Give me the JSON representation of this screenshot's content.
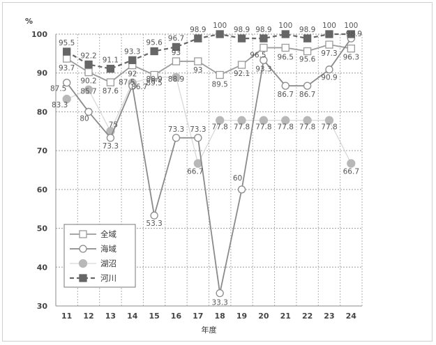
{
  "chart_data": {
    "type": "line",
    "ylabel": "%",
    "xlabel": "年度",
    "ylim": [
      30,
      100
    ],
    "yticks": [
      30,
      40,
      50,
      60,
      70,
      80,
      90,
      100
    ],
    "categories": [
      "11",
      "12",
      "13",
      "14",
      "15",
      "16",
      "17",
      "18",
      "19",
      "20",
      "21",
      "22",
      "23",
      "24"
    ],
    "grid": true,
    "legend_position": "bottom-left",
    "series": [
      {
        "name": "全域",
        "style": "solid-open-square",
        "color": "#9a9a9a",
        "values": [
          93.7,
          90.2,
          87.6,
          92,
          89.5,
          93,
          93,
          89.5,
          92.1,
          96.5,
          96.5,
          95.6,
          97.3,
          96.3
        ]
      },
      {
        "name": "海域",
        "style": "solid-open-circle",
        "color": "#8a8a8a",
        "values": [
          87.5,
          80,
          73.3,
          86.7,
          53.3,
          73.3,
          73.3,
          33.3,
          60,
          93.3,
          86.7,
          86.7,
          90.9,
          98.9
        ]
      },
      {
        "name": "湖沼",
        "style": "solid-filled-circle",
        "color": "#b8b8b8",
        "values": [
          83.3,
          85.7,
          75,
          87.5,
          88.9,
          88.9,
          66.7,
          77.8,
          77.8,
          77.8,
          77.8,
          77.8,
          77.8,
          66.7
        ]
      },
      {
        "name": "河川",
        "style": "dashed-filled-square",
        "color": "#666666",
        "values": [
          95.5,
          92.2,
          91.1,
          93.3,
          95.6,
          96.7,
          98.9,
          100,
          98.9,
          98.9,
          100,
          98.9,
          100,
          100
        ]
      }
    ],
    "data_labels": [
      {
        "text": "95.5",
        "series": 3,
        "index": 0
      },
      {
        "text": "92.2",
        "series": 3,
        "index": 1
      },
      {
        "text": "91.1",
        "series": 3,
        "index": 2
      },
      {
        "text": "93.3",
        "series": 3,
        "index": 3
      },
      {
        "text": "95.6",
        "series": 3,
        "index": 4
      },
      {
        "text": "96.7",
        "series": 3,
        "index": 5
      },
      {
        "text": "98.9",
        "series": 3,
        "index": 6
      },
      {
        "text": "100",
        "series": 3,
        "index": 7
      },
      {
        "text": "98.9",
        "series": 3,
        "index": 8
      },
      {
        "text": "98.9",
        "series": 3,
        "index": 9
      },
      {
        "text": "100",
        "series": 3,
        "index": 10
      },
      {
        "text": "98.9",
        "series": 3,
        "index": 11
      },
      {
        "text": "100",
        "series": 3,
        "index": 12
      },
      {
        "text": "100",
        "series": 3,
        "index": 13
      },
      {
        "text": "93.7",
        "series": 0,
        "index": 0
      },
      {
        "text": "90.2",
        "series": 0,
        "index": 1
      },
      {
        "text": "87.6",
        "series": 0,
        "index": 2
      },
      {
        "text": "92",
        "series": 0,
        "index": 3
      },
      {
        "text": "89.5",
        "series": 0,
        "index": 4
      },
      {
        "text": "93",
        "series": 0,
        "index": 5
      },
      {
        "text": "93",
        "series": 0,
        "index": 6
      },
      {
        "text": "89.5",
        "series": 0,
        "index": 7
      },
      {
        "text": "92.1",
        "series": 0,
        "index": 8
      },
      {
        "text": "96.5",
        "series": 0,
        "index": 9
      },
      {
        "text": "96.5",
        "series": 0,
        "index": 10
      },
      {
        "text": "95.6",
        "series": 0,
        "index": 11
      },
      {
        "text": "97.3",
        "series": 0,
        "index": 12
      },
      {
        "text": "96.3",
        "series": 0,
        "index": 13
      },
      {
        "text": "87.5",
        "series": 1,
        "index": 0
      },
      {
        "text": "80",
        "series": 1,
        "index": 1
      },
      {
        "text": "73.3",
        "series": 1,
        "index": 2
      },
      {
        "text": "86.7",
        "series": 1,
        "index": 3
      },
      {
        "text": "53.3",
        "series": 1,
        "index": 4
      },
      {
        "text": "73.3",
        "series": 1,
        "index": 5
      },
      {
        "text": "73.3",
        "series": 1,
        "index": 6
      },
      {
        "text": "33.3",
        "series": 1,
        "index": 7
      },
      {
        "text": "60",
        "series": 1,
        "index": 8
      },
      {
        "text": "93.3",
        "series": 1,
        "index": 9
      },
      {
        "text": "86.7",
        "series": 1,
        "index": 10
      },
      {
        "text": "86.7",
        "series": 1,
        "index": 11
      },
      {
        "text": "90.9",
        "series": 1,
        "index": 12
      },
      {
        "text": "98.9",
        "series": 1,
        "index": 13
      },
      {
        "text": "83.3",
        "series": 2,
        "index": 0
      },
      {
        "text": "85.7",
        "series": 2,
        "index": 1
      },
      {
        "text": "75",
        "series": 2,
        "index": 2
      },
      {
        "text": "87.5",
        "series": 2,
        "index": 3
      },
      {
        "text": "88.9",
        "series": 2,
        "index": 4
      },
      {
        "text": "88.9",
        "series": 2,
        "index": 5
      },
      {
        "text": "66.7",
        "series": 2,
        "index": 6
      },
      {
        "text": "77.8",
        "series": 2,
        "index": 7
      },
      {
        "text": "77.8",
        "series": 2,
        "index": 8
      },
      {
        "text": "77.8",
        "series": 2,
        "index": 9
      },
      {
        "text": "77.8",
        "series": 2,
        "index": 10
      },
      {
        "text": "77.8",
        "series": 2,
        "index": 11
      },
      {
        "text": "77.8",
        "series": 2,
        "index": 12
      },
      {
        "text": "66.7",
        "series": 2,
        "index": 13
      }
    ]
  }
}
